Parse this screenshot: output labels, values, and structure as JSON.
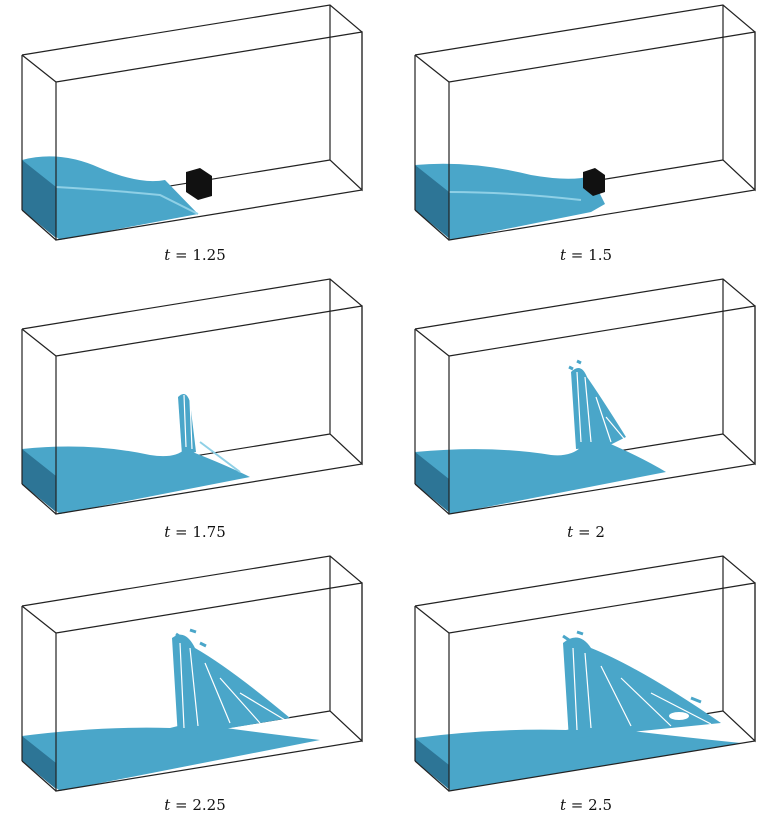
{
  "figure": {
    "panels": [
      {
        "caption_var": "t",
        "caption_eq": "=",
        "caption_value": "1.25",
        "t": 1.25
      },
      {
        "caption_var": "t",
        "caption_eq": "=",
        "caption_value": "1.5",
        "t": 1.5
      },
      {
        "caption_var": "t",
        "caption_eq": "=",
        "caption_value": "1.75",
        "t": 1.75
      },
      {
        "caption_var": "t",
        "caption_eq": "=",
        "caption_value": "2",
        "t": 2.0
      },
      {
        "caption_var": "t",
        "caption_eq": "=",
        "caption_value": "2.25",
        "t": 2.25
      },
      {
        "caption_var": "t",
        "caption_eq": "=",
        "caption_value": "2.5",
        "t": 2.5
      }
    ],
    "colors": {
      "water": "#4aa6c9",
      "water_dark": "#2d7596",
      "water_light": "#8fd0e6",
      "obstacle": "#111111",
      "box_edge": "#222222"
    }
  }
}
